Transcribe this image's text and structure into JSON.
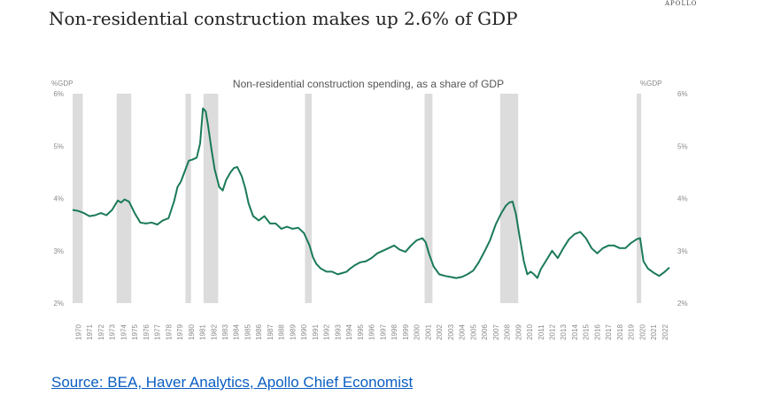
{
  "header": {
    "title": "Non-residential construction makes up 2.6% of GDP",
    "brand": "APOLLO"
  },
  "footer": {
    "source": "Source: BEA, Haver Analytics, Apollo Chief Economist"
  },
  "colors": {
    "line": "#1a7a56",
    "recession": "#dcdcdc",
    "tick_text": "#8a8a8a"
  },
  "chart_data": {
    "type": "line",
    "title": "Non-residential construction spending, as a share of GDP",
    "ylabel_left": "%GDP",
    "ylabel_right": "%GDP",
    "ylim": [
      2,
      6
    ],
    "yticks": [
      2,
      3,
      4,
      5,
      6
    ],
    "ytick_labels": [
      "2%",
      "3%",
      "4%",
      "5%",
      "6%"
    ],
    "xlim": [
      1970,
      2022.9
    ],
    "xticks": [
      1970,
      1971,
      1972,
      1973,
      1974,
      1975,
      1976,
      1977,
      1978,
      1979,
      1980,
      1981,
      1982,
      1983,
      1984,
      1985,
      1986,
      1987,
      1988,
      1989,
      1990,
      1991,
      1992,
      1993,
      1994,
      1995,
      1996,
      1997,
      1998,
      1999,
      2000,
      2001,
      2002,
      2003,
      2004,
      2005,
      2006,
      2007,
      2008,
      2009,
      2010,
      2011,
      2012,
      2013,
      2014,
      2015,
      2016,
      2017,
      2018,
      2019,
      2020,
      2021,
      2022
    ],
    "xtick_labels": [
      "1970",
      "1971",
      "1972",
      "1973",
      "1974",
      "1975",
      "1976",
      "1977",
      "1978",
      "1979",
      "1980",
      "1981",
      "1982",
      "1983",
      "1984",
      "1985",
      "1986",
      "1987",
      "1988",
      "1989",
      "1990",
      "1991",
      "1992",
      "1993",
      "1994",
      "1995",
      "1996",
      "1997",
      "1998",
      "1999",
      "2000",
      "2001",
      "2002",
      "2003",
      "2004",
      "2005",
      "2006",
      "2007",
      "2008",
      "2009",
      "2010",
      "2011",
      "2012",
      "2013",
      "2014",
      "2015",
      "2016",
      "2017",
      "2018",
      "2019",
      "2020",
      "2021",
      "2022"
    ],
    "recessions": [
      [
        1970.0,
        1970.9
      ],
      [
        1973.9,
        1975.2
      ],
      [
        1980.0,
        1980.5
      ],
      [
        1981.6,
        1982.9
      ],
      [
        1990.6,
        1991.2
      ],
      [
        2001.2,
        2001.9
      ],
      [
        2007.9,
        2009.5
      ],
      [
        2020.0,
        2020.4
      ]
    ],
    "series": [
      {
        "name": "",
        "x": [
          1970.0,
          1970.5,
          1971.0,
          1971.5,
          1972.0,
          1972.5,
          1973.0,
          1973.5,
          1974.0,
          1974.3,
          1974.6,
          1975.0,
          1975.5,
          1976.0,
          1976.5,
          1977.0,
          1977.5,
          1978.0,
          1978.5,
          1979.0,
          1979.3,
          1979.6,
          1980.0,
          1980.3,
          1980.6,
          1981.0,
          1981.3,
          1981.55,
          1981.8,
          1982.0,
          1982.3,
          1982.6,
          1983.0,
          1983.3,
          1983.6,
          1984.0,
          1984.3,
          1984.6,
          1985.0,
          1985.3,
          1985.6,
          1986.0,
          1986.5,
          1987.0,
          1987.5,
          1988.0,
          1988.5,
          1989.0,
          1989.5,
          1990.0,
          1990.5,
          1991.0,
          1991.3,
          1991.6,
          1992.0,
          1992.5,
          1993.0,
          1993.5,
          1994.0,
          1994.3,
          1994.6,
          1995.0,
          1995.5,
          1996.0,
          1996.5,
          1997.0,
          1997.5,
          1998.0,
          1998.5,
          1999.0,
          1999.5,
          2000.0,
          2000.5,
          2001.0,
          2001.3,
          2001.6,
          2002.0,
          2002.5,
          2003.0,
          2003.5,
          2004.0,
          2004.5,
          2005.0,
          2005.5,
          2006.0,
          2006.5,
          2007.0,
          2007.5,
          2008.0,
          2008.4,
          2008.7,
          2009.0,
          2009.3,
          2009.6,
          2010.0,
          2010.3,
          2010.6,
          2010.9,
          2011.2,
          2011.5,
          2012.0,
          2012.5,
          2013.0,
          2013.5,
          2014.0,
          2014.5,
          2015.0,
          2015.5,
          2016.0,
          2016.5,
          2017.0,
          2017.5,
          2018.0,
          2018.5,
          2019.0,
          2019.5,
          2020.0,
          2020.3,
          2020.6,
          2021.0,
          2021.5,
          2022.0,
          2022.5,
          2022.9
        ],
        "y": [
          3.78,
          3.76,
          3.72,
          3.66,
          3.68,
          3.72,
          3.68,
          3.78,
          3.96,
          3.92,
          3.98,
          3.94,
          3.72,
          3.54,
          3.52,
          3.54,
          3.5,
          3.58,
          3.62,
          3.95,
          4.22,
          4.32,
          4.55,
          4.72,
          4.74,
          4.78,
          5.05,
          5.72,
          5.66,
          5.4,
          4.95,
          4.55,
          4.22,
          4.15,
          4.35,
          4.5,
          4.58,
          4.6,
          4.42,
          4.2,
          3.9,
          3.66,
          3.58,
          3.66,
          3.52,
          3.52,
          3.42,
          3.46,
          3.42,
          3.44,
          3.34,
          3.1,
          2.88,
          2.75,
          2.66,
          2.6,
          2.6,
          2.55,
          2.58,
          2.6,
          2.66,
          2.72,
          2.78,
          2.8,
          2.86,
          2.95,
          3.0,
          3.05,
          3.1,
          3.02,
          2.98,
          3.1,
          3.2,
          3.24,
          3.16,
          2.94,
          2.7,
          2.55,
          2.52,
          2.5,
          2.48,
          2.5,
          2.55,
          2.62,
          2.78,
          2.98,
          3.2,
          3.5,
          3.72,
          3.86,
          3.92,
          3.94,
          3.7,
          3.3,
          2.8,
          2.55,
          2.6,
          2.55,
          2.48,
          2.65,
          2.82,
          3.0,
          2.86,
          3.05,
          3.22,
          3.32,
          3.36,
          3.24,
          3.05,
          2.95,
          3.05,
          3.1,
          3.1,
          3.05,
          3.05,
          3.15,
          3.22,
          3.24,
          2.8,
          2.66,
          2.58,
          2.52,
          2.6,
          2.68
        ]
      }
    ]
  }
}
